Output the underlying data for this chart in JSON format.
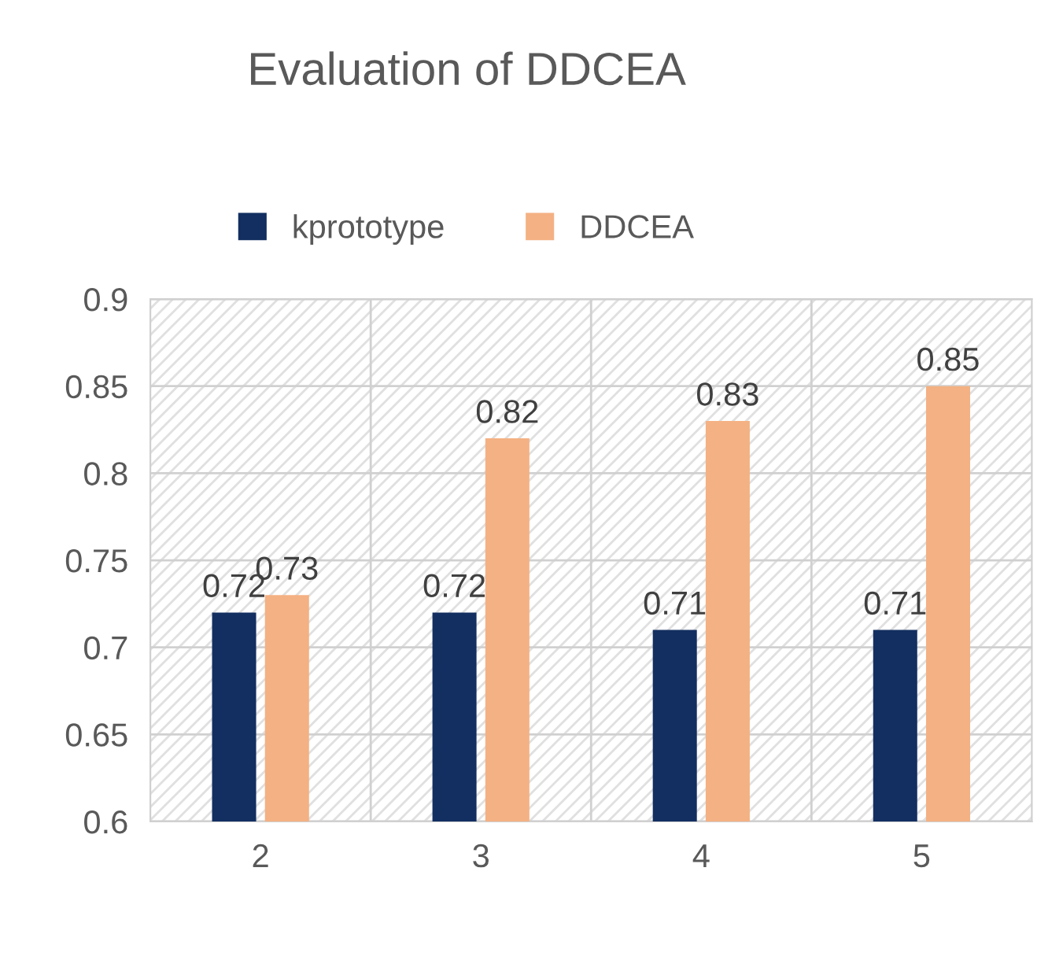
{
  "chart_data": {
    "type": "bar",
    "title": "Evaluation of DDCEA",
    "categories": [
      "2",
      "3",
      "4",
      "5"
    ],
    "series": [
      {
        "name": "kprototype",
        "color": "#132f61",
        "values": [
          0.72,
          0.72,
          0.71,
          0.71
        ]
      },
      {
        "name": "DDCEA",
        "color": "#f4b183",
        "values": [
          0.73,
          0.82,
          0.83,
          0.85
        ]
      }
    ],
    "ylim": [
      0.6,
      0.9
    ],
    "yticks": [
      0.6,
      0.65,
      0.7,
      0.75,
      0.8,
      0.85,
      0.9
    ],
    "grid": true,
    "legend": "top",
    "data_labels": true
  }
}
